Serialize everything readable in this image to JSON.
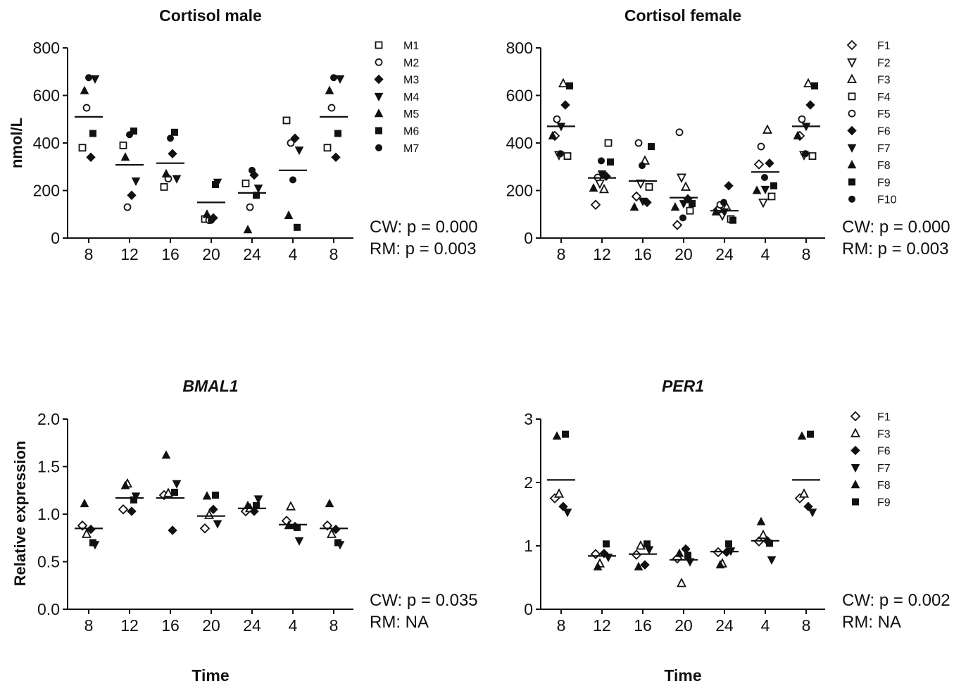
{
  "chart_data": [
    {
      "id": "p1",
      "type": "scatter",
      "title": "Cortisol male",
      "title_italic": false,
      "ylabel": "nmol/L",
      "xlabel": "",
      "categories": [
        "8",
        "12",
        "16",
        "20",
        "24",
        "4",
        "8"
      ],
      "ylim": [
        0,
        800
      ],
      "yticks": [
        "0",
        "200",
        "400",
        "600",
        "800"
      ],
      "means": [
        510,
        308,
        315,
        150,
        190,
        285,
        510
      ],
      "stats": [
        "CW: p = 0.000",
        "RM: p = 0.003"
      ],
      "legend": [
        {
          "label": "M1",
          "marker": "square-open"
        },
        {
          "label": "M2",
          "marker": "circle-open"
        },
        {
          "label": "M3",
          "marker": "diamond"
        },
        {
          "label": "M4",
          "marker": "triangle-down"
        },
        {
          "label": "M5",
          "marker": "triangle-up"
        },
        {
          "label": "M6",
          "marker": "square"
        },
        {
          "label": "M7",
          "marker": "circle"
        }
      ],
      "series": [
        {
          "name": "M1",
          "values": [
            380,
            390,
            215,
            80,
            230,
            495,
            380
          ]
        },
        {
          "name": "M2",
          "values": [
            548,
            130,
            250,
            75,
            130,
            400,
            548
          ]
        },
        {
          "name": "M3",
          "values": [
            340,
            180,
            355,
            85,
            265,
            420,
            340
          ]
        },
        {
          "name": "M4",
          "values": [
            670,
            240,
            250,
            235,
            210,
            370,
            670
          ]
        },
        {
          "name": "M5",
          "values": [
            620,
            340,
            270,
            100,
            35,
            95,
            620
          ]
        },
        {
          "name": "M6",
          "values": [
            440,
            450,
            445,
            225,
            180,
            45,
            440
          ]
        },
        {
          "name": "M7",
          "values": [
            675,
            435,
            420,
            75,
            285,
            245,
            675
          ]
        }
      ]
    },
    {
      "id": "p2",
      "type": "scatter",
      "title": "Cortisol female",
      "title_italic": false,
      "ylabel": "",
      "xlabel": "",
      "categories": [
        "8",
        "12",
        "16",
        "20",
        "24",
        "4",
        "8"
      ],
      "ylim": [
        0,
        800
      ],
      "yticks": [
        "0",
        "200",
        "400",
        "600",
        "800"
      ],
      "means": [
        470,
        253,
        240,
        170,
        115,
        278,
        470
      ],
      "stats": [
        "CW: p = 0.000",
        "RM: p = 0.003"
      ],
      "legend": [
        {
          "label": "F1",
          "marker": "diamond-open"
        },
        {
          "label": "F2",
          "marker": "triangle-down-open"
        },
        {
          "label": "F3",
          "marker": "triangle-up-open"
        },
        {
          "label": "F4",
          "marker": "square-open"
        },
        {
          "label": "F5",
          "marker": "circle-open"
        },
        {
          "label": "F6",
          "marker": "diamond"
        },
        {
          "label": "F7",
          "marker": "triangle-down"
        },
        {
          "label": "F8",
          "marker": "triangle-up"
        },
        {
          "label": "F9",
          "marker": "square"
        },
        {
          "label": "F10",
          "marker": "circle"
        }
      ],
      "series": [
        {
          "name": "F1",
          "values": [
            430,
            140,
            175,
            55,
            120,
            310,
            430
          ]
        },
        {
          "name": "F2",
          "values": [
            350,
            230,
            230,
            255,
            95,
            150,
            350
          ]
        },
        {
          "name": "F3",
          "values": [
            650,
            205,
            325,
            215,
            130,
            455,
            650
          ]
        },
        {
          "name": "F4",
          "values": [
            345,
            400,
            215,
            115,
            80,
            175,
            345
          ]
        },
        {
          "name": "F5",
          "values": [
            500,
            255,
            400,
            445,
            140,
            385,
            500
          ]
        },
        {
          "name": "F6",
          "values": [
            560,
            260,
            150,
            165,
            220,
            315,
            560
          ]
        },
        {
          "name": "F7",
          "values": [
            470,
            270,
            155,
            145,
            110,
            205,
            470
          ]
        },
        {
          "name": "F8",
          "values": [
            430,
            210,
            130,
            130,
            110,
            200,
            430
          ]
        },
        {
          "name": "F9",
          "values": [
            640,
            320,
            385,
            145,
            75,
            220,
            640
          ]
        },
        {
          "name": "F10",
          "values": [
            355,
            325,
            305,
            85,
            150,
            255,
            355
          ]
        }
      ]
    },
    {
      "id": "p3",
      "type": "scatter",
      "title": "BMAL1",
      "title_italic": true,
      "ylabel": "Relative expression",
      "xlabel": "Time",
      "categories": [
        "8",
        "12",
        "16",
        "20",
        "24",
        "4",
        "8"
      ],
      "ylim": [
        0,
        2.0
      ],
      "yticks": [
        "0.0",
        "0.5",
        "1.0",
        "1.5",
        "2.0"
      ],
      "means": [
        0.85,
        1.17,
        1.17,
        0.98,
        1.06,
        0.89,
        0.85
      ],
      "stats": [
        "CW: p = 0.035",
        "RM: NA"
      ],
      "legend": [],
      "series": [
        {
          "name": "F1",
          "values": [
            0.88,
            1.05,
            1.2,
            0.85,
            1.03,
            0.93,
            0.88
          ]
        },
        {
          "name": "F3",
          "values": [
            0.79,
            1.32,
            1.22,
            0.99,
            1.06,
            1.08,
            0.79
          ]
        },
        {
          "name": "F6",
          "values": [
            0.84,
            1.03,
            0.83,
            1.05,
            1.03,
            0.87,
            0.84
          ]
        },
        {
          "name": "F7",
          "values": [
            0.68,
            1.19,
            1.32,
            0.9,
            1.16,
            0.72,
            0.68
          ]
        },
        {
          "name": "F8",
          "values": [
            1.11,
            1.3,
            1.62,
            1.19,
            1.09,
            0.88,
            1.11
          ]
        },
        {
          "name": "F9",
          "values": [
            0.7,
            1.15,
            1.23,
            1.2,
            1.09,
            0.86,
            0.7
          ]
        }
      ]
    },
    {
      "id": "p4",
      "type": "scatter",
      "title": "PER1",
      "title_italic": true,
      "ylabel": "",
      "xlabel": "Time",
      "categories": [
        "8",
        "12",
        "16",
        "20",
        "24",
        "4",
        "8"
      ],
      "ylim": [
        0,
        3
      ],
      "yticks": [
        "0",
        "1",
        "2",
        "3"
      ],
      "means": [
        2.04,
        0.84,
        0.87,
        0.78,
        0.91,
        1.08,
        2.04
      ],
      "stats": [
        "CW: p = 0.002",
        "RM: NA"
      ],
      "legend": [
        {
          "label": "F1",
          "marker": "diamond-open"
        },
        {
          "label": "F3",
          "marker": "triangle-up-open"
        },
        {
          "label": "F6",
          "marker": "diamond"
        },
        {
          "label": "F7",
          "marker": "triangle-down"
        },
        {
          "label": "F8",
          "marker": "triangle-up"
        },
        {
          "label": "F9",
          "marker": "square"
        }
      ],
      "series": [
        {
          "name": "F1",
          "values": [
            1.75,
            0.87,
            0.86,
            0.8,
            0.9,
            1.07,
            1.75
          ]
        },
        {
          "name": "F3",
          "values": [
            1.82,
            0.72,
            1.0,
            0.41,
            0.72,
            1.17,
            1.82
          ]
        },
        {
          "name": "F6",
          "values": [
            1.62,
            0.88,
            0.7,
            0.95,
            0.9,
            1.08,
            1.62
          ]
        },
        {
          "name": "F7",
          "values": [
            1.53,
            0.82,
            0.94,
            0.75,
            0.92,
            0.78,
            1.53
          ]
        },
        {
          "name": "F8",
          "values": [
            2.73,
            0.67,
            0.67,
            0.88,
            0.7,
            1.38,
            2.73
          ]
        },
        {
          "name": "F9",
          "values": [
            2.76,
            1.03,
            1.03,
            0.85,
            1.03,
            1.04,
            2.76
          ]
        }
      ]
    }
  ]
}
